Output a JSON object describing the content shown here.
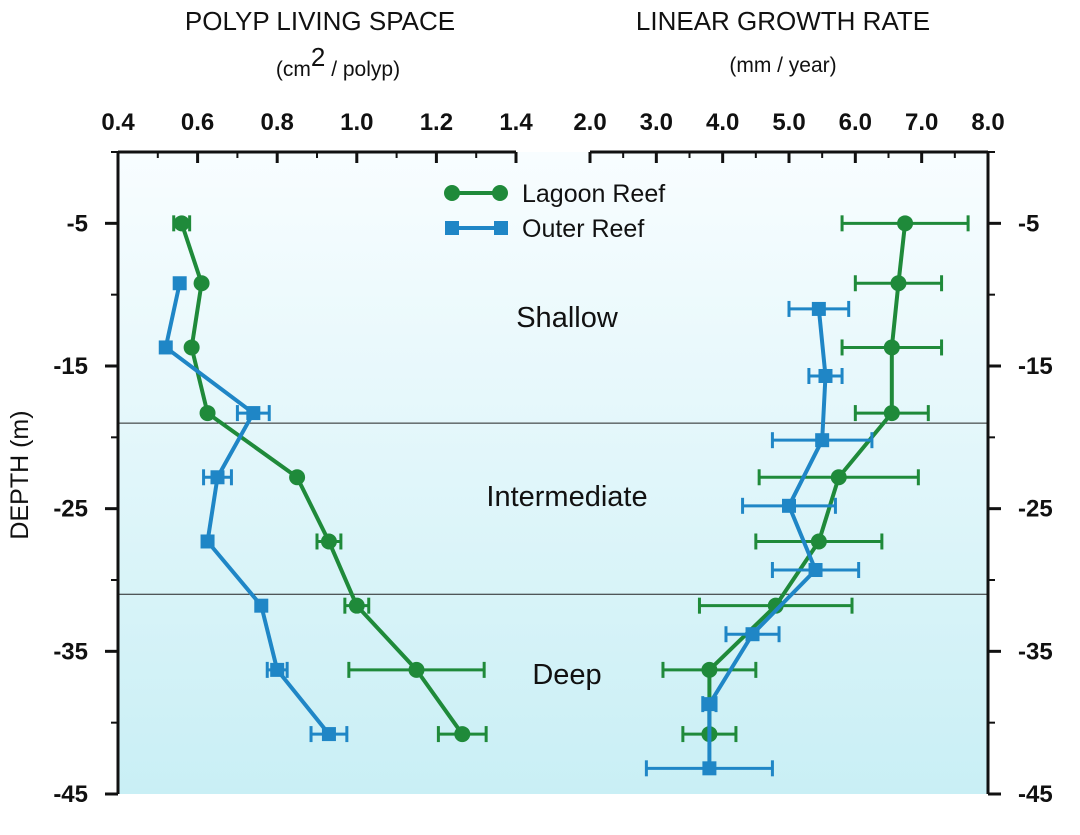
{
  "chart_data": [
    {
      "type": "line",
      "title": "POLYP LIVING SPACE",
      "unit_label": "(cm2 / polyp)",
      "ylabel": "DEPTH (m)",
      "xlim": [
        0.4,
        1.4
      ],
      "ylim": [
        -45,
        0
      ],
      "x_ticks": [
        "0.4",
        "0.6",
        "0.8",
        "1.0",
        "1.2",
        "1.4"
      ],
      "y_ticks": [
        "-5",
        "-15",
        "-25",
        "-35",
        "-45"
      ],
      "series": [
        {
          "name": "Lagoon Reef",
          "color": "#1f8a3a",
          "marker": "circle",
          "points": [
            {
              "x": 0.56,
              "y": -5,
              "err": 0.02
            },
            {
              "x": 0.61,
              "y": -9.2,
              "err": 0.0
            },
            {
              "x": 0.585,
              "y": -13.7,
              "err": 0.0
            },
            {
              "x": 0.625,
              "y": -18.3,
              "err": 0.0
            },
            {
              "x": 0.85,
              "y": -22.8,
              "err": 0.0
            },
            {
              "x": 0.93,
              "y": -27.3,
              "err": 0.03
            },
            {
              "x": 1.0,
              "y": -31.8,
              "err": 0.03
            },
            {
              "x": 1.15,
              "y": -36.3,
              "err": 0.17
            },
            {
              "x": 1.265,
              "y": -40.8,
              "err": 0.06
            }
          ]
        },
        {
          "name": "Outer Reef",
          "color": "#1f86c6",
          "marker": "square",
          "points": [
            {
              "x": 0.555,
              "y": -9.2,
              "err": 0.0
            },
            {
              "x": 0.52,
              "y": -13.7,
              "err": 0.0
            },
            {
              "x": 0.74,
              "y": -18.3,
              "err": 0.04
            },
            {
              "x": 0.65,
              "y": -22.8,
              "err": 0.035
            },
            {
              "x": 0.625,
              "y": -27.3,
              "err": 0.0
            },
            {
              "x": 0.76,
              "y": -31.8,
              "err": 0.0
            },
            {
              "x": 0.8,
              "y": -36.3,
              "err": 0.025
            },
            {
              "x": 0.93,
              "y": -40.8,
              "err": 0.045
            }
          ]
        }
      ]
    },
    {
      "type": "line",
      "title": "LINEAR GROWTH RATE",
      "unit_label": "(mm / year)",
      "ylabel": "",
      "xlim": [
        2.0,
        8.0
      ],
      "ylim": [
        -45,
        0
      ],
      "x_ticks": [
        "2.0",
        "3.0",
        "4.0",
        "5.0",
        "6.0",
        "7.0",
        "8.0"
      ],
      "y_ticks": [
        "-5",
        "-15",
        "-25",
        "-35",
        "-45"
      ],
      "series": [
        {
          "name": "Lagoon Reef",
          "color": "#1f8a3a",
          "marker": "circle",
          "points": [
            {
              "x": 6.75,
              "y": -5,
              "err": 0.95
            },
            {
              "x": 6.65,
              "y": -9.2,
              "err": 0.65
            },
            {
              "x": 6.55,
              "y": -13.7,
              "err": 0.75
            },
            {
              "x": 6.55,
              "y": -18.3,
              "err": 0.55
            },
            {
              "x": 5.75,
              "y": -22.8,
              "err": 1.2
            },
            {
              "x": 5.45,
              "y": -27.3,
              "err": 0.95
            },
            {
              "x": 4.8,
              "y": -31.8,
              "err": 1.15
            },
            {
              "x": 3.8,
              "y": -36.3,
              "err": 0.7
            },
            {
              "x": 3.8,
              "y": -40.8,
              "err": 0.4
            }
          ]
        },
        {
          "name": "Outer Reef",
          "color": "#1f86c6",
          "marker": "square",
          "points": [
            {
              "x": 5.45,
              "y": -11,
              "err": 0.45
            },
            {
              "x": 5.55,
              "y": -15.7,
              "err": 0.25
            },
            {
              "x": 5.5,
              "y": -20.2,
              "err": 0.75
            },
            {
              "x": 5.0,
              "y": -24.8,
              "err": 0.7
            },
            {
              "x": 5.4,
              "y": -29.3,
              "err": 0.65
            },
            {
              "x": 4.45,
              "y": -33.8,
              "err": 0.4
            },
            {
              "x": 3.8,
              "y": -38.7,
              "err": 0.1
            },
            {
              "x": 3.8,
              "y": -43.2,
              "err": 0.95
            }
          ]
        }
      ]
    }
  ],
  "legend": {
    "items": [
      {
        "name": "Lagoon Reef",
        "color": "#1f8a3a",
        "marker": "circle"
      },
      {
        "name": "Outer Reef",
        "color": "#1f86c6",
        "marker": "square"
      }
    ]
  },
  "zones": {
    "labels": [
      "Shallow",
      "Intermediate",
      "Deep"
    ],
    "boundaries": [
      -19,
      -31
    ]
  },
  "colors": {
    "background_top": "#f8fdff",
    "background_bottom": "#c9eff5",
    "divider": "#222222"
  }
}
